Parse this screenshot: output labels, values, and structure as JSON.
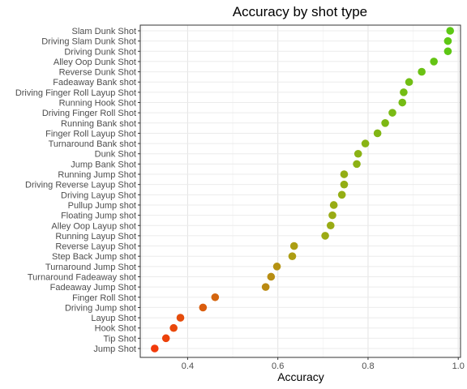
{
  "chart_data": {
    "type": "scatter",
    "title": "Accuracy by shot type",
    "xlabel": "Accuracy",
    "ylabel": "",
    "xlim": [
      0.295,
      1.005
    ],
    "xticks": [
      0.4,
      0.6,
      0.8,
      1.0
    ],
    "xtick_labels": [
      "0.4",
      "0.6",
      "0.8",
      "1.0"
    ],
    "grid": true,
    "legend": "none",
    "color_low": "#f23a0a",
    "color_mid": "#a8a414",
    "color_high": "#5cc814",
    "categories": [
      "Slam Dunk Shot",
      "Driving Slam Dunk Shot",
      "Driving Dunk Shot",
      "Alley Oop Dunk Shot",
      "Reverse Dunk Shot",
      "Fadeaway Bank shot",
      "Driving Finger Roll Layup Shot",
      "Running Hook Shot",
      "Driving Finger Roll Shot",
      "Running Bank shot",
      "Finger Roll Layup Shot",
      "Turnaround Bank shot",
      "Dunk Shot",
      "Jump Bank Shot",
      "Running Jump Shot",
      "Driving Reverse Layup Shot",
      "Driving Layup Shot",
      "Pullup Jump shot",
      "Floating Jump shot",
      "Alley Oop Layup shot",
      "Running Layup Shot",
      "Reverse Layup Shot",
      "Step Back Jump shot",
      "Turnaround Jump Shot",
      "Turnaround Fadeaway shot",
      "Fadeaway Jump Shot",
      "Finger Roll Shot",
      "Driving Jump shot",
      "Layup Shot",
      "Hook Shot",
      "Tip Shot",
      "Jump Shot"
    ],
    "values": [
      0.982,
      0.977,
      0.977,
      0.946,
      0.919,
      0.891,
      0.879,
      0.876,
      0.854,
      0.838,
      0.821,
      0.794,
      0.778,
      0.775,
      0.747,
      0.747,
      0.742,
      0.724,
      0.721,
      0.717,
      0.705,
      0.636,
      0.632,
      0.598,
      0.585,
      0.573,
      0.461,
      0.434,
      0.384,
      0.369,
      0.352,
      0.327
    ]
  }
}
